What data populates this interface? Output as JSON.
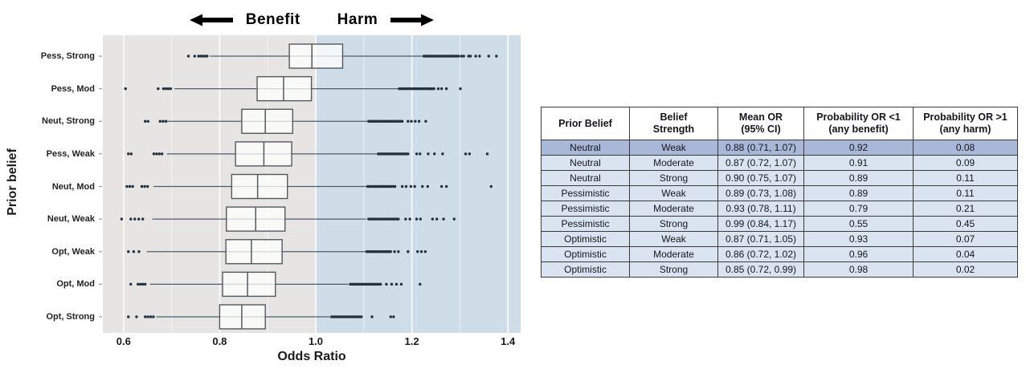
{
  "chart_data": {
    "type": "boxplot",
    "orientation": "horizontal",
    "title": {
      "left_word": "Benefit",
      "right_word": "Harm",
      "left_arrow_icon": "arrow-left",
      "right_arrow_icon": "arrow-right"
    },
    "xlabel": "Odds Ratio",
    "ylabel": "Prior belief",
    "x_ticks": [
      0.6,
      0.8,
      1.0,
      1.2,
      1.4
    ],
    "x_minor_step": 0.1,
    "xlim": [
      0.556,
      1.427
    ],
    "reference_value": 1.0,
    "regions": {
      "benefit_color": "#e6e5e3",
      "harm_color": "#cfdde9",
      "gridline_color": "#ffffff"
    },
    "box_style": {
      "fill": "rgba(255,255,255,0.75)",
      "stroke": "#54595e",
      "whisker_color": "#4d5d6a",
      "dot_color": "#24313f"
    },
    "rows": [
      {
        "label": "Pess, Strong",
        "whisker_lo": 0.78,
        "q1": 0.945,
        "median": 0.992,
        "q3": 1.056,
        "whisker_hi": 1.222,
        "outliers_low": [
          0.735,
          0.748
        ],
        "low_band": {
          "from": 0.756,
          "to": 0.774,
          "count": 5
        },
        "high_band": {
          "from": 1.225,
          "to": 1.297,
          "count": 22
        },
        "outliers_high": [
          1.303,
          1.308,
          1.318,
          1.322,
          1.333,
          1.341,
          1.36,
          1.376
        ]
      },
      {
        "label": "Pess, Mod",
        "whisker_lo": 0.706,
        "q1": 0.878,
        "median": 0.933,
        "q3": 0.991,
        "whisker_hi": 1.172,
        "outliers_low": [
          0.604,
          0.672
        ],
        "low_band": {
          "from": 0.683,
          "to": 0.698,
          "count": 4
        },
        "high_band": {
          "from": 1.174,
          "to": 1.246,
          "count": 21
        },
        "outliers_high": [
          1.255,
          1.262,
          1.272,
          1.301
        ]
      },
      {
        "label": "Neut, Strong",
        "whisker_lo": 0.69,
        "q1": 0.846,
        "median": 0.895,
        "q3": 0.952,
        "whisker_hi": 1.107,
        "outliers_low": [
          0.645,
          0.651
        ],
        "low_band": {
          "from": 0.676,
          "to": 0.688,
          "count": 3
        },
        "high_band": {
          "from": 1.11,
          "to": 1.18,
          "count": 20
        },
        "outliers_high": [
          1.192,
          1.199,
          1.207,
          1.215,
          1.229
        ]
      },
      {
        "label": "Pess, Weak",
        "whisker_lo": 0.69,
        "q1": 0.833,
        "median": 0.892,
        "q3": 0.95,
        "whisker_hi": 1.127,
        "outliers_low": [
          0.61,
          0.616
        ],
        "low_band": {
          "from": 0.663,
          "to": 0.68,
          "count": 4
        },
        "high_band": {
          "from": 1.13,
          "to": 1.192,
          "count": 19
        },
        "outliers_high": [
          1.21,
          1.217,
          1.234,
          1.247,
          1.264,
          1.312,
          1.32,
          1.357
        ]
      },
      {
        "label": "Neut, Mod",
        "whisker_lo": 0.662,
        "q1": 0.825,
        "median": 0.879,
        "q3": 0.941,
        "whisker_hi": 1.105,
        "outliers_low": [
          0.607,
          0.613,
          0.619
        ],
        "low_band": {
          "from": 0.638,
          "to": 0.65,
          "count": 3
        },
        "high_band": {
          "from": 1.108,
          "to": 1.165,
          "count": 17
        },
        "outliers_high": [
          1.18,
          1.188,
          1.198,
          1.206,
          1.222,
          1.233,
          1.262,
          1.272,
          1.365
        ]
      },
      {
        "label": "Neut, Weak",
        "whisker_lo": 0.66,
        "q1": 0.814,
        "median": 0.875,
        "q3": 0.936,
        "whisker_hi": 1.105,
        "outliers_low": [
          0.596
        ],
        "low_band": {
          "from": 0.615,
          "to": 0.64,
          "count": 4
        },
        "high_band": {
          "from": 1.11,
          "to": 1.172,
          "count": 18
        },
        "outliers_high": [
          1.187,
          1.196,
          1.21,
          1.218,
          1.243,
          1.252,
          1.266,
          1.288
        ]
      },
      {
        "label": "Opt, Weak",
        "whisker_lo": 0.648,
        "q1": 0.813,
        "median": 0.866,
        "q3": 0.93,
        "whisker_hi": 1.103,
        "outliers_low": [
          0.61,
          0.621,
          0.632
        ],
        "low_band": null,
        "high_band": {
          "from": 1.106,
          "to": 1.156,
          "count": 16
        },
        "outliers_high": [
          1.164,
          1.172,
          1.192,
          1.212,
          1.22,
          1.228
        ]
      },
      {
        "label": "Opt, Mod",
        "whisker_lo": 0.655,
        "q1": 0.806,
        "median": 0.858,
        "q3": 0.916,
        "whisker_hi": 1.068,
        "outliers_low": [
          0.615
        ],
        "low_band": {
          "from": 0.63,
          "to": 0.645,
          "count": 4
        },
        "high_band": {
          "from": 1.072,
          "to": 1.135,
          "count": 18
        },
        "outliers_high": [
          1.147,
          1.158,
          1.168,
          1.178,
          1.217
        ]
      },
      {
        "label": "Opt, Strong",
        "whisker_lo": 0.668,
        "q1": 0.8,
        "median": 0.846,
        "q3": 0.895,
        "whisker_hi": 1.03,
        "outliers_low": [
          0.61,
          0.627
        ],
        "low_band": {
          "from": 0.645,
          "to": 0.662,
          "count": 4
        },
        "high_band": {
          "from": 1.033,
          "to": 1.095,
          "count": 18
        },
        "outliers_high": [
          1.117,
          1.156,
          1.162
        ]
      }
    ]
  },
  "table": {
    "columns": [
      {
        "line1": "Prior Belief",
        "line2": ""
      },
      {
        "line1": "Belief",
        "line2": "Strength"
      },
      {
        "line1": "Mean OR",
        "line2": "(95% CI)"
      },
      {
        "line1": "Probability OR <1",
        "line2": "(any benefit)"
      },
      {
        "line1": "Probability OR >1",
        "line2": "(any harm)"
      }
    ],
    "rows": [
      [
        "Neutral",
        "Weak",
        "0.88 (0.71, 1.07)",
        "0.92",
        "0.08"
      ],
      [
        "Neutral",
        "Moderate",
        "0.87 (0.72, 1.07)",
        "0.91",
        "0.09"
      ],
      [
        "Neutral",
        "Strong",
        "0.90 (0.75, 1.07)",
        "0.89",
        "0.11"
      ],
      [
        "Pessimistic",
        "Weak",
        "0.89 (0.73, 1.08)",
        "0.89",
        "0.11"
      ],
      [
        "Pessimistic",
        "Moderate",
        "0.93 (0.78, 1.11)",
        "0.79",
        "0.21"
      ],
      [
        "Pessimistic",
        "Strong",
        "0.99 (0.84, 1.17)",
        "0.55",
        "0.45"
      ],
      [
        "Optimistic",
        "Weak",
        "0.87 (0.71, 1.05)",
        "0.93",
        "0.07"
      ],
      [
        "Optimistic",
        "Moderate",
        "0.86 (0.72, 1.02)",
        "0.96",
        "0.04"
      ],
      [
        "Optimistic",
        "Strong",
        "0.85 (0.72, 0.99)",
        "0.98",
        "0.02"
      ]
    ],
    "highlight_row_index": 0,
    "colors": {
      "row_bg": "#dae4f1",
      "highlight_bg": "#a9b7d9",
      "header_bg": "#ffffff",
      "border": "#3b3b3b"
    }
  }
}
